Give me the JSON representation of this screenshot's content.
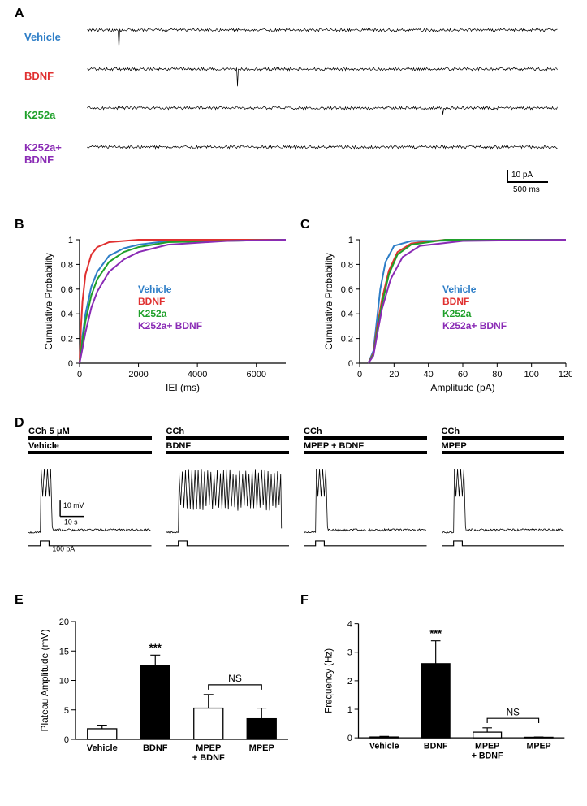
{
  "panel_labels": {
    "A": "A",
    "B": "B",
    "C": "C",
    "D": "D",
    "E": "E",
    "F": "F"
  },
  "colors": {
    "vehicle": "#2e7ec7",
    "bdnf": "#e03030",
    "k252a": "#1fa02a",
    "k252a_bdnf": "#8a2bb5",
    "black": "#000000",
    "white": "#ffffff",
    "axis": "#000000"
  },
  "panel_a": {
    "traces": [
      {
        "label": "Vehicle",
        "color_key": "vehicle"
      },
      {
        "label": "BDNF",
        "color_key": "bdnf"
      },
      {
        "label": "K252a",
        "color_key": "k252a"
      },
      {
        "label": "K252a+\nBDNF",
        "color_key": "k252a_bdnf"
      }
    ],
    "scale_y": "10 pA",
    "scale_x": "500 ms"
  },
  "panel_b": {
    "ylabel": "Cumulative Probability",
    "xlabel": "IEI (ms)",
    "xlim": [
      0,
      7000
    ],
    "ylim": [
      0,
      1.0
    ],
    "xticks": [
      0,
      2000,
      4000,
      6000
    ],
    "yticks": [
      0,
      0.2,
      0.4,
      0.6,
      0.8,
      1.0
    ],
    "legend_items": [
      {
        "label": "Vehicle",
        "color_key": "vehicle"
      },
      {
        "label": "BDNF",
        "color_key": "bdnf"
      },
      {
        "label": "K252a",
        "color_key": "k252a"
      },
      {
        "label": "K252a+ BDNF",
        "color_key": "k252a_bdnf"
      }
    ],
    "curves": {
      "vehicle": [
        [
          0,
          0
        ],
        [
          100,
          0.22
        ],
        [
          200,
          0.4
        ],
        [
          400,
          0.62
        ],
        [
          600,
          0.74
        ],
        [
          1000,
          0.87
        ],
        [
          1500,
          0.93
        ],
        [
          2000,
          0.96
        ],
        [
          3000,
          0.99
        ],
        [
          7000,
          1.0
        ]
      ],
      "bdnf": [
        [
          0,
          0
        ],
        [
          50,
          0.3
        ],
        [
          100,
          0.5
        ],
        [
          200,
          0.72
        ],
        [
          400,
          0.88
        ],
        [
          600,
          0.94
        ],
        [
          1000,
          0.98
        ],
        [
          2000,
          1.0
        ],
        [
          7000,
          1.0
        ]
      ],
      "k252a": [
        [
          0,
          0
        ],
        [
          100,
          0.18
        ],
        [
          200,
          0.34
        ],
        [
          400,
          0.55
        ],
        [
          600,
          0.68
        ],
        [
          1000,
          0.82
        ],
        [
          1500,
          0.9
        ],
        [
          2000,
          0.94
        ],
        [
          3000,
          0.98
        ],
        [
          7000,
          1.0
        ]
      ],
      "k252a_bdnf": [
        [
          0,
          0
        ],
        [
          100,
          0.12
        ],
        [
          200,
          0.25
        ],
        [
          400,
          0.45
        ],
        [
          600,
          0.58
        ],
        [
          1000,
          0.74
        ],
        [
          1500,
          0.84
        ],
        [
          2000,
          0.9
        ],
        [
          3000,
          0.96
        ],
        [
          5000,
          0.99
        ],
        [
          7000,
          1.0
        ]
      ]
    }
  },
  "panel_c": {
    "ylabel": "Cumulative Probability",
    "xlabel": "Amplitude (pA)",
    "xlim": [
      0,
      120
    ],
    "ylim": [
      0,
      1.0
    ],
    "xticks": [
      0,
      20,
      40,
      60,
      80,
      100,
      120
    ],
    "yticks": [
      0,
      0.2,
      0.4,
      0.6,
      0.8,
      1.0
    ],
    "legend_items": [
      {
        "label": "Vehicle",
        "color_key": "vehicle"
      },
      {
        "label": "BDNF",
        "color_key": "bdnf"
      },
      {
        "label": "K252a",
        "color_key": "k252a"
      },
      {
        "label": "K252a+ BDNF",
        "color_key": "k252a_bdnf"
      }
    ],
    "curves": {
      "vehicle": [
        [
          5,
          0
        ],
        [
          8,
          0.1
        ],
        [
          10,
          0.35
        ],
        [
          12,
          0.6
        ],
        [
          15,
          0.82
        ],
        [
          20,
          0.95
        ],
        [
          30,
          0.99
        ],
        [
          120,
          1.0
        ]
      ],
      "bdnf": [
        [
          5,
          0
        ],
        [
          8,
          0.08
        ],
        [
          10,
          0.28
        ],
        [
          13,
          0.52
        ],
        [
          17,
          0.75
        ],
        [
          22,
          0.9
        ],
        [
          30,
          0.97
        ],
        [
          50,
          1.0
        ],
        [
          120,
          1.0
        ]
      ],
      "k252a": [
        [
          5,
          0
        ],
        [
          8,
          0.07
        ],
        [
          10,
          0.25
        ],
        [
          13,
          0.48
        ],
        [
          17,
          0.72
        ],
        [
          22,
          0.88
        ],
        [
          30,
          0.96
        ],
        [
          50,
          1.0
        ],
        [
          120,
          1.0
        ]
      ],
      "k252a_bdnf": [
        [
          5,
          0
        ],
        [
          8,
          0.06
        ],
        [
          10,
          0.22
        ],
        [
          13,
          0.44
        ],
        [
          18,
          0.68
        ],
        [
          25,
          0.86
        ],
        [
          35,
          0.95
        ],
        [
          60,
          0.99
        ],
        [
          120,
          1.0
        ]
      ]
    }
  },
  "panel_d": {
    "cch_label": "CCh 5 μM",
    "cch_short": "CCh",
    "conditions": [
      "Vehicle",
      "BDNF",
      "MPEP + BDNF",
      "MPEP"
    ],
    "scale_y": "10 mV",
    "scale_x": "10 s",
    "stim_label": "100 pA"
  },
  "panel_e": {
    "ylabel": "Plateau Amplitude (mV)",
    "ylim": [
      0,
      20
    ],
    "yticks": [
      0,
      5,
      10,
      15,
      20
    ],
    "bars": [
      {
        "label": "Vehicle",
        "value": 1.8,
        "err": 0.6,
        "fill": "white"
      },
      {
        "label": "BDNF",
        "value": 12.5,
        "err": 1.8,
        "fill": "black",
        "sig": "***"
      },
      {
        "label": "MPEP\n+ BDNF",
        "value": 5.3,
        "err": 2.3,
        "fill": "white"
      },
      {
        "label": "MPEP",
        "value": 3.5,
        "err": 1.8,
        "fill": "black"
      }
    ],
    "ns_label": "NS",
    "ns_between": [
      2,
      3
    ]
  },
  "panel_f": {
    "ylabel": "Frequency (Hz)",
    "ylim": [
      0,
      4
    ],
    "yticks": [
      0,
      1,
      2,
      3,
      4
    ],
    "bars": [
      {
        "label": "Vehicle",
        "value": 0.03,
        "err": 0.02,
        "fill": "white"
      },
      {
        "label": "BDNF",
        "value": 2.6,
        "err": 0.8,
        "fill": "black",
        "sig": "***"
      },
      {
        "label": "MPEP\n+ BDNF",
        "value": 0.2,
        "err": 0.15,
        "fill": "white"
      },
      {
        "label": "MPEP",
        "value": 0.02,
        "err": 0.01,
        "fill": "black"
      }
    ],
    "ns_label": "NS",
    "ns_between": [
      2,
      3
    ]
  }
}
